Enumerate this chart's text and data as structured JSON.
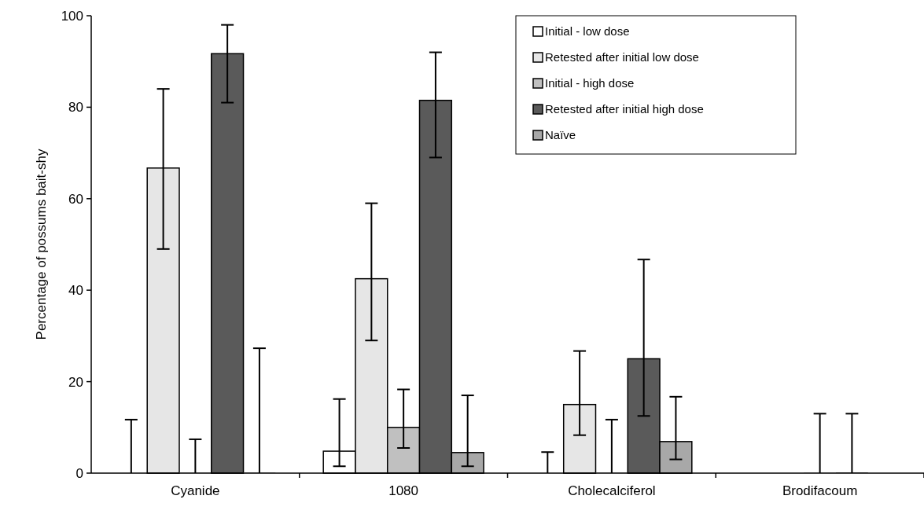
{
  "chart_data": {
    "type": "bar",
    "ylabel": "Percentage of possums bait-shy",
    "categories": [
      "Cyanide",
      "1080",
      "Cholecalciferol",
      "Brodifacoum"
    ],
    "series": [
      {
        "name": "Initial - low dose",
        "color": "#ffffff",
        "values": [
          0,
          4.8,
          0,
          null
        ],
        "errors": [
          [
            0,
            11.7
          ],
          [
            1.5,
            16.2
          ],
          [
            0,
            4.6
          ],
          null
        ]
      },
      {
        "name": "Retested after initial low dose",
        "color": "#e6e6e6",
        "values": [
          66.7,
          42.5,
          15,
          null
        ],
        "errors": [
          [
            49,
            84
          ],
          [
            29,
            59
          ],
          [
            8.3,
            26.7
          ],
          null
        ]
      },
      {
        "name": "Initial - high dose",
        "color": "#c0c0c0",
        "values": [
          0,
          10,
          0,
          0
        ],
        "errors": [
          [
            0,
            7.4
          ],
          [
            5.5,
            18.3
          ],
          [
            0,
            11.7
          ],
          [
            0,
            13
          ]
        ]
      },
      {
        "name": "Retested after initial high dose",
        "color": "#5a5a5a",
        "values": [
          91.7,
          81.5,
          25,
          0
        ],
        "errors": [
          [
            81,
            98
          ],
          [
            69,
            92
          ],
          [
            12.5,
            46.7
          ],
          [
            0,
            13
          ]
        ]
      },
      {
        "name": "Naïve",
        "color": "#a8a8a8",
        "values": [
          0,
          4.5,
          6.9,
          null
        ],
        "errors": [
          [
            0,
            27.3
          ],
          [
            1.5,
            17
          ],
          [
            3,
            16.7
          ],
          null
        ]
      }
    ],
    "ylim": [
      0,
      100
    ],
    "yticks": [
      0,
      20,
      40,
      60,
      80,
      100
    ],
    "grid": false,
    "legend": "top right"
  }
}
